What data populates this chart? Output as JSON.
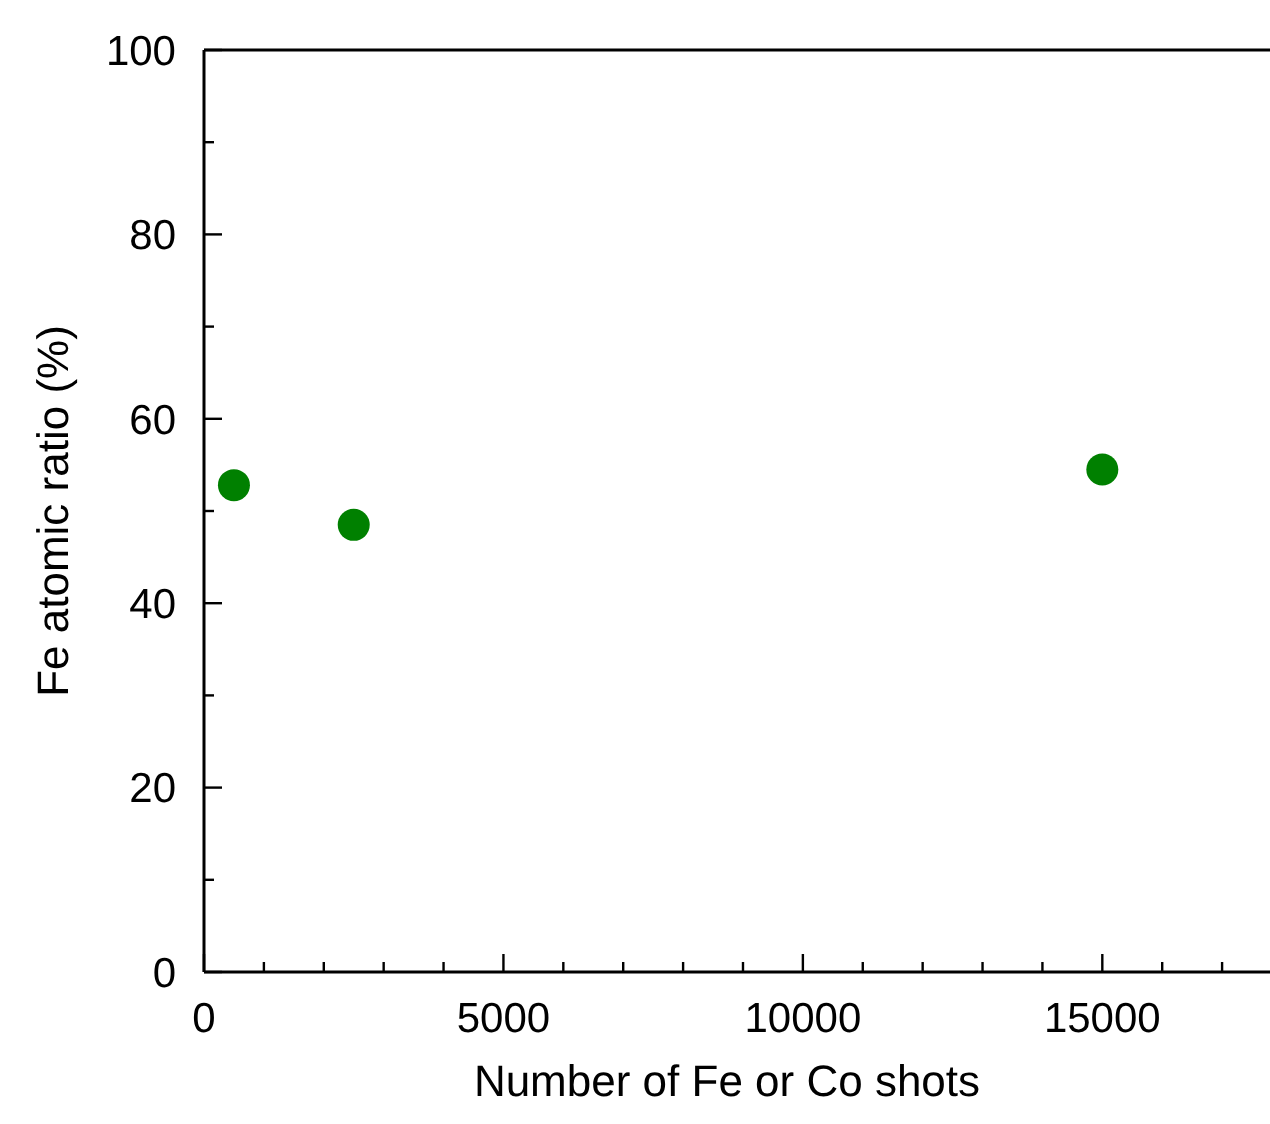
{
  "chart_data": {
    "type": "scatter",
    "xlabel": "Number of Fe or Co shots",
    "ylabel": "Fe atomic ratio (%)",
    "x": [
      500,
      2500,
      15000
    ],
    "values": [
      52.8,
      48.5,
      54.5
    ],
    "color": "#008000",
    "marker": "circle",
    "xlim": [
      0,
      17800
    ],
    "xticks": [
      0,
      {
        "value": 1000,
        "label": null
      },
      {
        "value": 2000,
        "label": null
      },
      {
        "value": 3000,
        "label": null
      },
      {
        "value": 4000,
        "label": null
      },
      5000,
      {
        "value": 6000,
        "label": null
      },
      {
        "value": 7000,
        "label": null
      },
      {
        "value": 8000,
        "label": null
      },
      {
        "value": 9000,
        "label": null
      },
      10000,
      {
        "value": 11000,
        "label": null
      },
      {
        "value": 12000,
        "label": null
      },
      {
        "value": 13000,
        "label": null
      },
      {
        "value": 14000,
        "label": null
      },
      15000,
      {
        "value": 16000,
        "label": null
      },
      {
        "value": 17000,
        "label": null
      }
    ],
    "ylim": [
      0,
      100
    ],
    "yticks": [
      0,
      {
        "value": 10,
        "label": null
      },
      20,
      {
        "value": 30,
        "label": null
      },
      40,
      {
        "value": 50,
        "label": null
      },
      60,
      {
        "value": 70,
        "label": null
      },
      80,
      {
        "value": 90,
        "label": null
      },
      100
    ],
    "grid": false
  }
}
